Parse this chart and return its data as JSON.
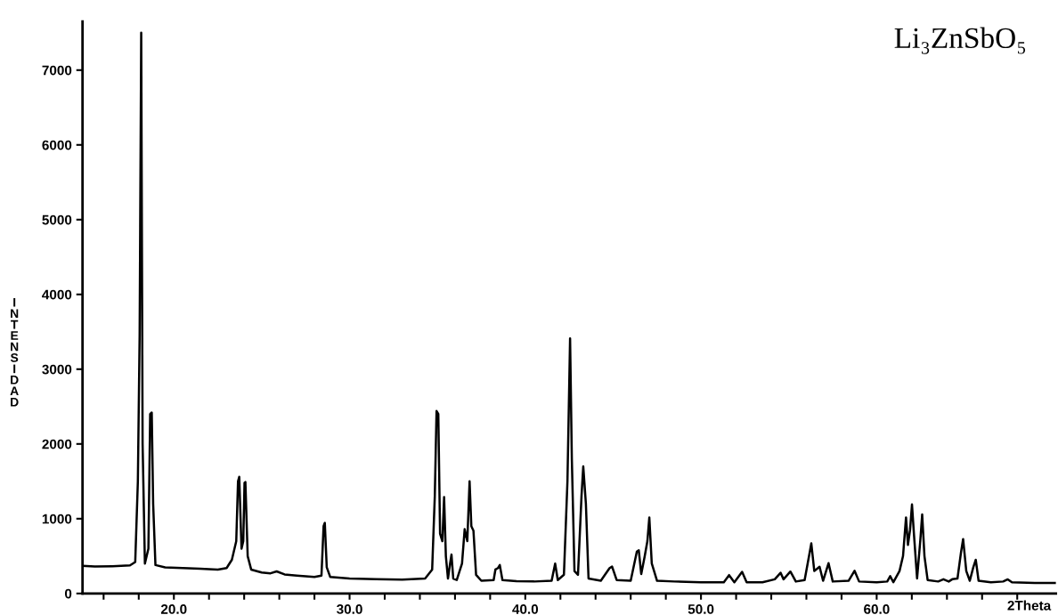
{
  "chart_data": {
    "type": "line",
    "title": "Li₃ZnSbO₅",
    "xlabel": "2Theta",
    "ylabel": "INTENSIDAD",
    "xlim": [
      14.8,
      70.2
    ],
    "ylim": [
      0,
      7650
    ],
    "xticks": [
      {
        "value": 16,
        "label": null
      },
      {
        "value": 18,
        "label": null
      },
      {
        "value": 20,
        "label": "20.0"
      },
      {
        "value": 22,
        "label": null
      },
      {
        "value": 24,
        "label": null
      },
      {
        "value": 26,
        "label": null
      },
      {
        "value": 28,
        "label": null
      },
      {
        "value": 30,
        "label": "30.0"
      },
      {
        "value": 32,
        "label": null
      },
      {
        "value": 34,
        "label": null
      },
      {
        "value": 36,
        "label": null
      },
      {
        "value": 38,
        "label": null
      },
      {
        "value": 40,
        "label": "40.0"
      },
      {
        "value": 42,
        "label": null
      },
      {
        "value": 44,
        "label": null
      },
      {
        "value": 46,
        "label": null
      },
      {
        "value": 48,
        "label": null
      },
      {
        "value": 50,
        "label": "50.0"
      },
      {
        "value": 52,
        "label": null
      },
      {
        "value": 54,
        "label": null
      },
      {
        "value": 56,
        "label": null
      },
      {
        "value": 58,
        "label": null
      },
      {
        "value": 60,
        "label": "60.0"
      },
      {
        "value": 62,
        "label": null
      },
      {
        "value": 64,
        "label": null
      },
      {
        "value": 66,
        "label": null
      },
      {
        "value": 68,
        "label": null
      }
    ],
    "yticks": [
      0,
      1000,
      2000,
      3000,
      4000,
      5000,
      6000,
      7000
    ],
    "grid": false,
    "legend": false,
    "marker": "none",
    "line_style": "solid",
    "series": [
      {
        "color": "#000000",
        "x": [
          14.8,
          15.5,
          16.5,
          17.5,
          17.8,
          17.95,
          18.05,
          18.14,
          18.22,
          18.35,
          18.55,
          18.65,
          18.74,
          18.82,
          18.95,
          19.5,
          20.5,
          21.5,
          22.5,
          23.0,
          23.3,
          23.55,
          23.65,
          23.72,
          23.85,
          23.95,
          24.02,
          24.07,
          24.2,
          24.4,
          25.0,
          25.5,
          25.85,
          26.3,
          27.0,
          28.0,
          28.4,
          28.52,
          28.59,
          28.7,
          28.9,
          30.0,
          31.5,
          33.0,
          34.3,
          34.7,
          34.85,
          34.95,
          35.05,
          35.15,
          35.28,
          35.38,
          35.48,
          35.6,
          35.72,
          35.8,
          35.9,
          36.1,
          36.4,
          36.55,
          36.7,
          36.83,
          36.93,
          37.05,
          37.2,
          37.5,
          38.2,
          38.3,
          38.45,
          38.55,
          38.7,
          39.5,
          40.5,
          41.5,
          41.7,
          41.85,
          42.2,
          42.4,
          42.55,
          42.65,
          42.8,
          43.0,
          43.2,
          43.3,
          43.45,
          43.6,
          44.3,
          44.8,
          44.94,
          45.2,
          46.0,
          46.35,
          46.46,
          46.6,
          46.8,
          46.95,
          47.06,
          47.2,
          47.5,
          48.5,
          50.0,
          51.3,
          51.6,
          51.9,
          52.34,
          52.6,
          53.5,
          54.2,
          54.53,
          54.7,
          55.09,
          55.4,
          55.9,
          56.15,
          56.28,
          56.45,
          56.75,
          56.95,
          57.26,
          57.5,
          58.4,
          58.74,
          59.0,
          60.0,
          60.6,
          60.77,
          60.95,
          61.3,
          61.5,
          61.67,
          61.78,
          61.9,
          62.01,
          62.12,
          62.3,
          62.48,
          62.59,
          62.72,
          62.9,
          63.5,
          63.8,
          64.1,
          64.3,
          64.6,
          64.8,
          64.92,
          65.1,
          65.3,
          65.5,
          65.64,
          65.8,
          66.5,
          67.2,
          67.46,
          67.7,
          69.0,
          70.2
        ],
        "values": [
          370,
          360,
          365,
          375,
          420,
          1500,
          3450,
          7500,
          2000,
          400,
          600,
          2400,
          2420,
          1200,
          380,
          350,
          340,
          330,
          320,
          340,
          450,
          700,
          1500,
          1560,
          600,
          700,
          1480,
          1490,
          500,
          320,
          280,
          270,
          295,
          255,
          240,
          220,
          240,
          900,
          945,
          350,
          220,
          200,
          190,
          185,
          200,
          320,
          1300,
          2440,
          2400,
          800,
          700,
          1290,
          500,
          200,
          400,
          520,
          200,
          180,
          400,
          860,
          700,
          1500,
          900,
          840,
          250,
          170,
          180,
          320,
          340,
          380,
          180,
          165,
          160,
          170,
          400,
          180,
          250,
          1500,
          3410,
          1800,
          300,
          250,
          1300,
          1700,
          1200,
          200,
          170,
          340,
          360,
          180,
          170,
          560,
          578,
          260,
          500,
          700,
          1017,
          400,
          170,
          160,
          150,
          150,
          246,
          150,
          289,
          150,
          150,
          190,
          277,
          190,
          293,
          160,
          180,
          500,
          670,
          300,
          358,
          170,
          405,
          160,
          170,
          304,
          160,
          150,
          160,
          231,
          150,
          300,
          500,
          1017,
          650,
          850,
          1191,
          800,
          200,
          700,
          1056,
          500,
          180,
          160,
          190,
          160,
          190,
          200,
          550,
          728,
          300,
          170,
          350,
          451,
          170,
          150,
          160,
          189,
          150,
          140,
          140
        ]
      }
    ]
  }
}
